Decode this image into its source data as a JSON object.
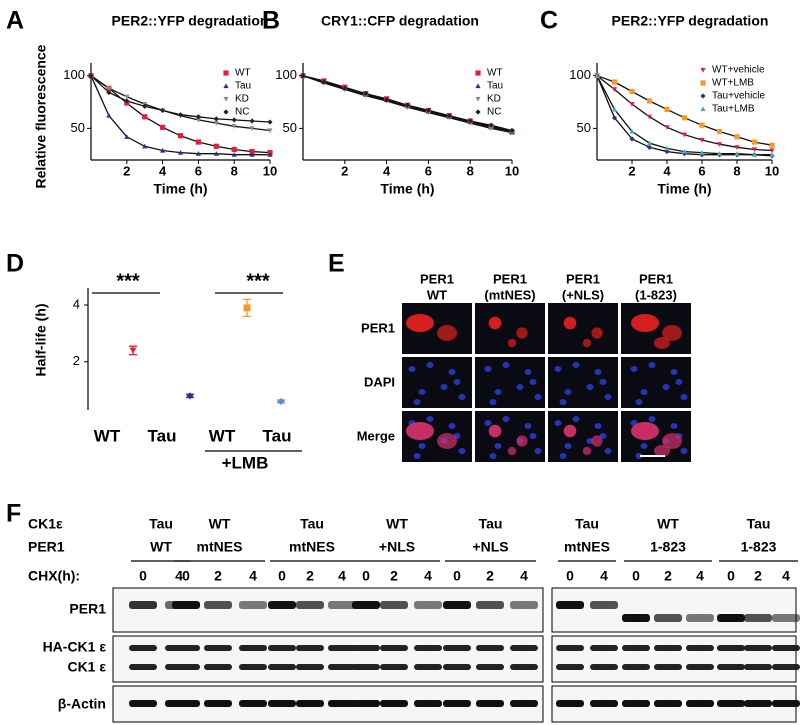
{
  "chart_data": [
    {
      "type": "line",
      "panel_label": "A",
      "title": "PER2::YFP degradation",
      "xlabel": "Time (h)",
      "ylabel": "Relative fluorescence",
      "x": [
        0,
        1,
        2,
        3,
        4,
        5,
        6,
        7,
        8,
        9,
        10
      ],
      "xlim": [
        0,
        10
      ],
      "xticks": [
        2,
        4,
        6,
        8,
        10
      ],
      "ylim": [
        20,
        112
      ],
      "yticks": [
        50,
        100
      ],
      "series": [
        {
          "name": "WT",
          "color": "#e0203c",
          "marker": "square",
          "values": [
            100,
            88,
            74,
            61,
            51,
            43,
            37,
            33,
            30,
            28,
            27
          ]
        },
        {
          "name": "Tau",
          "color": "#27328a",
          "marker": "triangle",
          "values": [
            100,
            62,
            42,
            33,
            29,
            27,
            26,
            26,
            25,
            25,
            25
          ]
        },
        {
          "name": "KD",
          "color": "#7a9a7a",
          "marker": "triangle-down",
          "values": [
            100,
            88,
            80,
            73,
            67,
            62,
            58,
            55,
            52,
            50,
            48
          ]
        },
        {
          "name": "NC",
          "color": "#222222",
          "marker": "diamond",
          "values": [
            100,
            84,
            76,
            71,
            67,
            63,
            61,
            59,
            58,
            57,
            56
          ]
        }
      ]
    },
    {
      "type": "line",
      "panel_label": "B",
      "title": "CRY1::CFP degradation",
      "xlabel": "Time (h)",
      "x": [
        0,
        1,
        2,
        3,
        4,
        5,
        6,
        7,
        8,
        9,
        10
      ],
      "xlim": [
        0,
        10
      ],
      "xticks": [
        2,
        4,
        6,
        8,
        10
      ],
      "ylim": [
        20,
        112
      ],
      "yticks": [
        50,
        100
      ],
      "series": [
        {
          "name": "WT",
          "color": "#e0203c",
          "marker": "square",
          "values": [
            100,
            95,
            89,
            83,
            78,
            72,
            67,
            62,
            57,
            52,
            47
          ]
        },
        {
          "name": "Tau",
          "color": "#27328a",
          "marker": "triangle",
          "values": [
            100,
            94,
            88,
            82,
            77,
            71,
            66,
            61,
            56,
            51,
            46
          ]
        },
        {
          "name": "KD",
          "color": "#7a9a7a",
          "marker": "triangle-down",
          "values": [
            100,
            93,
            87,
            81,
            76,
            70,
            65,
            60,
            55,
            50,
            46
          ]
        },
        {
          "name": "NC",
          "color": "#222222",
          "marker": "diamond",
          "values": [
            100,
            94,
            88,
            83,
            77,
            72,
            67,
            62,
            57,
            53,
            48
          ]
        }
      ]
    },
    {
      "type": "line",
      "panel_label": "C",
      "title": "PER2::YFP degradation",
      "xlabel": "Time (h)",
      "x": [
        0,
        1,
        2,
        3,
        4,
        5,
        6,
        7,
        8,
        9,
        10
      ],
      "xlim": [
        0,
        10
      ],
      "xticks": [
        2,
        4,
        6,
        8,
        10
      ],
      "ylim": [
        20,
        112
      ],
      "yticks": [
        50,
        100
      ],
      "series": [
        {
          "name": "WT+vehicle",
          "color": "#e0203c",
          "marker": "triangle-down",
          "values": [
            100,
            87,
            73,
            61,
            51,
            44,
            39,
            35,
            32,
            30,
            29
          ]
        },
        {
          "name": "WT+LMB",
          "color": "#f39a2b",
          "marker": "square",
          "values": [
            100,
            94,
            85,
            76,
            68,
            60,
            53,
            47,
            42,
            37,
            34
          ]
        },
        {
          "name": "Tau+vehicle",
          "color": "#27328a",
          "marker": "diamond",
          "values": [
            100,
            60,
            40,
            32,
            28,
            26,
            25,
            25,
            25,
            25,
            24
          ]
        },
        {
          "name": "Tau+LMB",
          "color": "#4aa8b8",
          "marker": "triangle",
          "values": [
            100,
            68,
            47,
            36,
            31,
            28,
            27,
            26,
            26,
            25,
            25
          ]
        }
      ]
    },
    {
      "type": "dot",
      "panel_label": "D",
      "ylabel": "Half-life (h)",
      "categories": [
        "WT",
        "Tau",
        "WT",
        "Tau"
      ],
      "values": [
        2.4,
        0.8,
        3.9,
        0.6
      ],
      "errors": [
        0.15,
        0.06,
        0.3,
        0.05
      ],
      "colors": [
        "#d42a3a",
        "#27328a",
        "#f39a2b",
        "#5a8fd6"
      ],
      "markers": [
        "triangle-down",
        "diamond",
        "square",
        "diamond"
      ],
      "ylim": [
        0.3,
        4.6
      ],
      "yticks": [
        2,
        4
      ],
      "annotations": [
        "***",
        "***"
      ],
      "group_label": "+LMB"
    }
  ],
  "panel_e": {
    "label": "E",
    "columns": [
      [
        "PER1",
        "WT"
      ],
      [
        "PER1",
        "(mtNES)"
      ],
      [
        "PER1",
        "(+NLS)"
      ],
      [
        "PER1",
        "(1-823)"
      ]
    ],
    "rows": [
      "PER1",
      "DAPI",
      "Merge"
    ]
  },
  "panel_f": {
    "label": "F",
    "header_labels": [
      "CK1ε",
      "PER1",
      "CHX(h):"
    ],
    "blots": [
      {
        "groups": [
          {
            "ck1": "Tau",
            "per1": "WT",
            "times": [
              0,
              4
            ]
          },
          {
            "ck1": "WT",
            "per1": "mtNES",
            "times": [
              0,
              2,
              4
            ]
          },
          {
            "ck1": "Tau",
            "per1": "mtNES",
            "times": [
              0,
              2,
              4
            ]
          },
          {
            "ck1": "WT",
            "per1": "+NLS",
            "times": [
              0,
              2,
              4
            ]
          },
          {
            "ck1": "Tau",
            "per1": "+NLS",
            "times": [
              0,
              2,
              4
            ]
          }
        ]
      },
      {
        "groups": [
          {
            "ck1": "Tau",
            "per1": "mtNES",
            "times": [
              0,
              4
            ]
          },
          {
            "ck1": "WT",
            "per1": "1-823",
            "times": [
              0,
              2,
              4
            ]
          },
          {
            "ck1": "Tau",
            "per1": "1-823",
            "times": [
              0,
              2,
              4
            ]
          }
        ]
      }
    ],
    "row_labels": [
      "PER1",
      "HA-CK1 ε",
      "CK1 ε",
      "β-Actin"
    ]
  }
}
